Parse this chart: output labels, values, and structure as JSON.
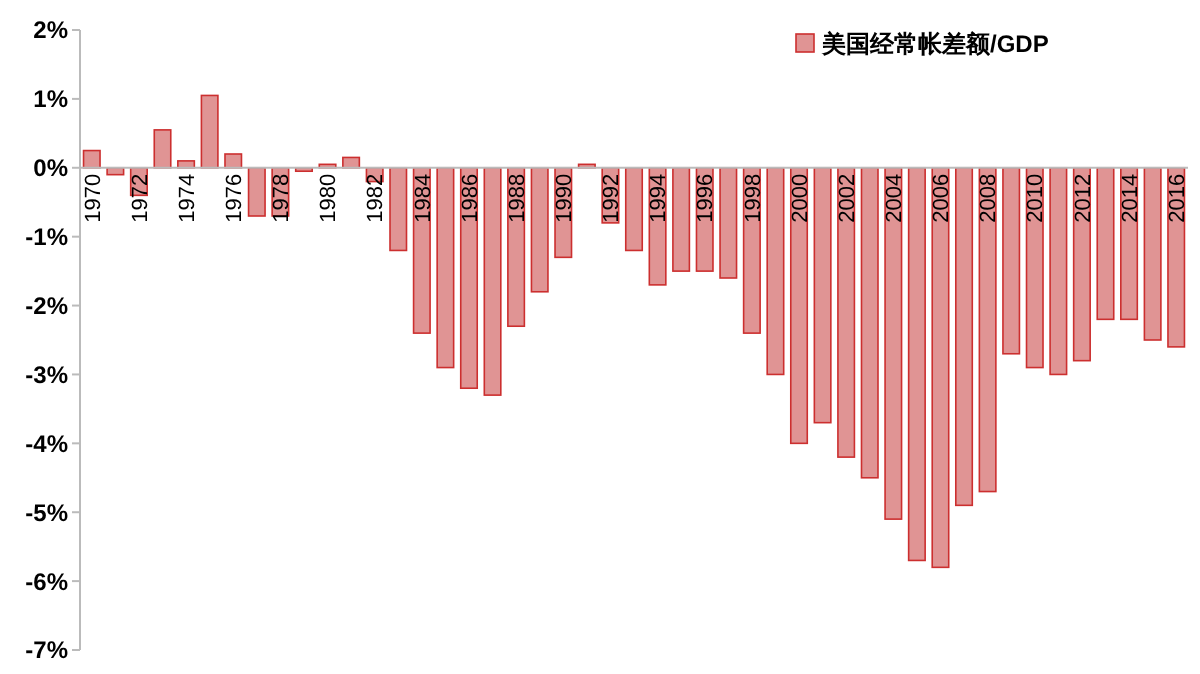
{
  "chart_data": {
    "type": "bar",
    "categories": [
      "1970",
      null,
      "1972",
      null,
      "1974",
      null,
      "1976",
      null,
      "1978",
      null,
      "1980",
      null,
      "1982",
      null,
      "1984",
      null,
      "1986",
      null,
      "1988",
      null,
      "1990",
      null,
      "1992",
      null,
      "1994",
      null,
      "1996",
      null,
      "1998",
      null,
      "2000",
      null,
      "2002",
      null,
      "2004",
      null,
      "2006",
      null,
      "2008",
      null,
      "2010",
      null,
      "2012",
      null,
      "2014",
      null,
      "2016"
    ],
    "series": [
      {
        "name": "美国经常帐差额/GDP",
        "color": "#e09494",
        "values": [
          0.25,
          -0.1,
          -0.4,
          0.55,
          0.1,
          1.05,
          0.2,
          -0.7,
          -0.7,
          -0.05,
          0.05,
          0.15,
          -0.2,
          -1.2,
          -2.4,
          -2.9,
          -3.2,
          -3.3,
          -2.3,
          -1.8,
          -1.3,
          0.05,
          -0.8,
          -1.2,
          -1.7,
          -1.5,
          -1.5,
          -1.6,
          -2.4,
          -3.0,
          -4.0,
          -3.7,
          -4.2,
          -4.5,
          -5.1,
          -5.7,
          -5.8,
          -4.9,
          -4.7,
          -2.7,
          -2.9,
          -3.0,
          -2.8,
          -2.2,
          -2.2,
          -2.5,
          -2.6
        ]
      }
    ],
    "ylim": [
      -7,
      2
    ],
    "yticks": [
      {
        "value": -7,
        "label": "-7%"
      },
      {
        "value": -6,
        "label": "-6%"
      },
      {
        "value": -5,
        "label": "-5%"
      },
      {
        "value": -4,
        "label": "-4%"
      },
      {
        "value": -3,
        "label": "-3%"
      },
      {
        "value": -2,
        "label": "-2%"
      },
      {
        "value": -1,
        "label": "-1%"
      },
      {
        "value": 0,
        "label": "0%"
      },
      {
        "value": 1,
        "label": "1%"
      },
      {
        "value": 2,
        "label": "2%"
      }
    ],
    "legend": "top right",
    "grid": false
  }
}
